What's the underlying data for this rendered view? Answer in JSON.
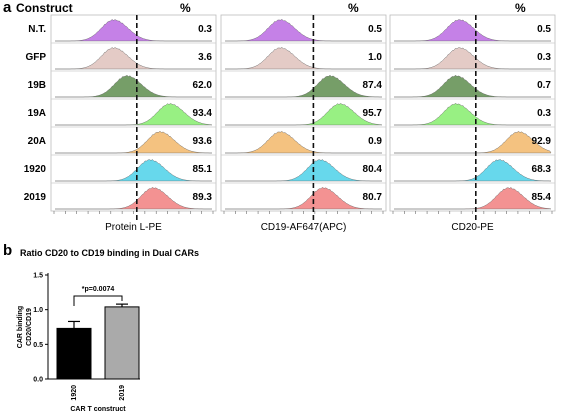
{
  "panel_a": {
    "letter": "a",
    "construct_header": "Construct",
    "percent_header": "%",
    "rows": [
      "N.T.",
      "GFP",
      "19B",
      "19A",
      "20A",
      "1920",
      "2019"
    ],
    "row_colors": [
      "#c27be6",
      "#e3c9c4",
      "#6f9960",
      "#93f07d",
      "#f4bf7a",
      "#5fd6ec",
      "#f38d8d"
    ],
    "panels": [
      {
        "xlabel": "Protein L-PE",
        "percents": [
          "0.3",
          "3.6",
          "62.0",
          "93.4",
          "93.6",
          "85.1",
          "89.3"
        ],
        "peaks": [
          0.38,
          0.38,
          0.46,
          0.72,
          0.66,
          0.6,
          0.62
        ]
      },
      {
        "xlabel": "CD19-AF647(APC)",
        "percents": [
          "0.5",
          "1.0",
          "87.4",
          "95.7",
          "0.9",
          "80.4",
          "80.7"
        ],
        "peaks": [
          0.36,
          0.36,
          0.66,
          0.72,
          0.36,
          0.6,
          0.62
        ]
      },
      {
        "xlabel": "CD20-PE",
        "percents": [
          "0.5",
          "0.3",
          "0.7",
          "0.3",
          "92.9",
          "68.3",
          "85.4"
        ],
        "peaks": [
          0.42,
          0.42,
          0.4,
          0.4,
          0.78,
          0.66,
          0.72
        ]
      }
    ]
  },
  "panel_b": {
    "letter": "b",
    "chart_data": {
      "type": "bar",
      "title": "Ratio  CD20 to CD19 binding in Dual CARs",
      "categories": [
        "1920",
        "2019"
      ],
      "values": [
        0.73,
        1.04
      ],
      "errors": [
        0.1,
        0.04
      ],
      "bar_colors": [
        "#000000",
        "#aaaaaa"
      ],
      "ylabel_line1": "CAR binding",
      "ylabel_line2": "CD20/CD19",
      "xlabel": "CAR T construct",
      "ylim": [
        0,
        1.5
      ],
      "yticks": [
        "0.0",
        "0.5",
        "1.0",
        "1.5"
      ],
      "annotation": "*p=0.0074"
    }
  }
}
